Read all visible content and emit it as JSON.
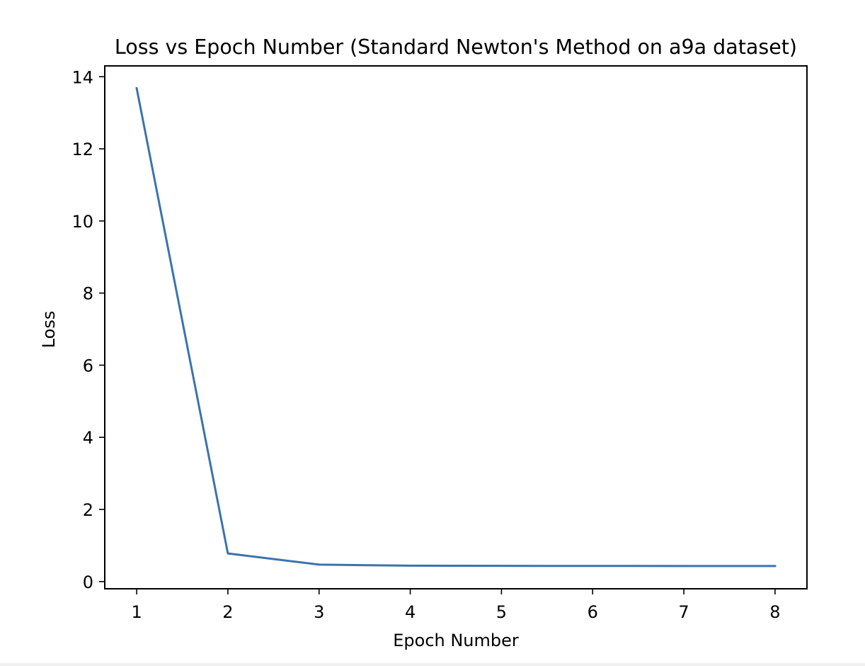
{
  "chart_data": {
    "type": "line",
    "title": "Loss vs Epoch Number (Standard Newton's Method on a9a dataset)",
    "xlabel": "Epoch Number",
    "ylabel": "Loss",
    "xlim": [
      0.65,
      8.35
    ],
    "ylim": [
      -0.2,
      14.3
    ],
    "xticks": [
      1,
      2,
      3,
      4,
      5,
      6,
      7,
      8
    ],
    "yticks": [
      0,
      2,
      4,
      6,
      8,
      10,
      12,
      14
    ],
    "grid": false,
    "legend": "none",
    "series": [
      {
        "x": [
          1,
          2,
          3,
          4,
          5,
          6,
          7,
          8
        ],
        "values": [
          13.68,
          0.78,
          0.47,
          0.44,
          0.435,
          0.433,
          0.432,
          0.432
        ],
        "color": "#3b73ad"
      }
    ]
  }
}
